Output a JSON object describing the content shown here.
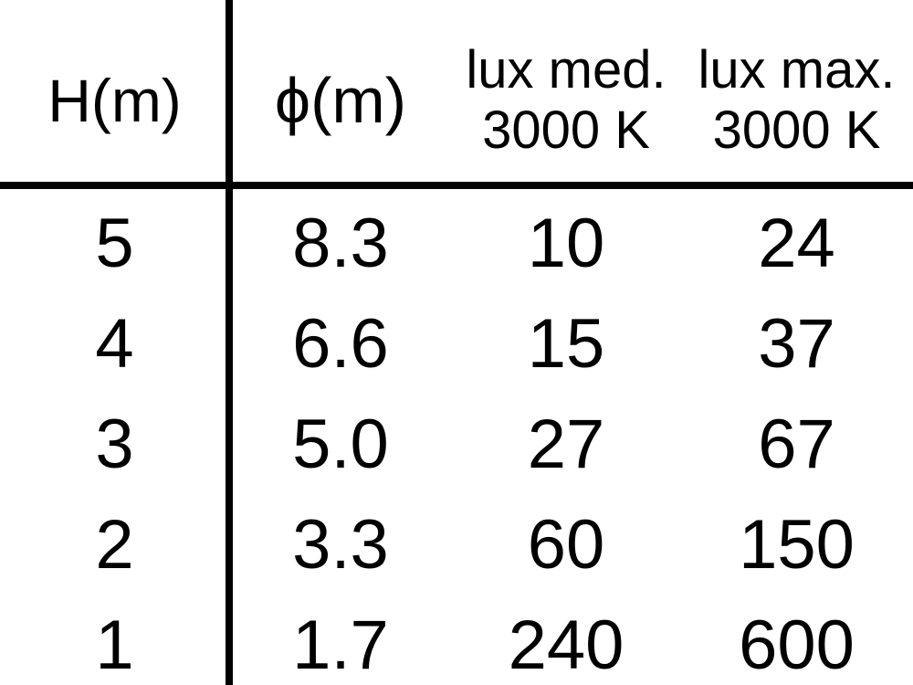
{
  "colors": {
    "background": "#ffffff",
    "text": "#000000",
    "rule": "#000000"
  },
  "table": {
    "columns": [
      {
        "label": "H(m)",
        "sub": ""
      },
      {
        "label": "ϕ(m)",
        "sub": ""
      },
      {
        "label": "lux med.",
        "sub": "3000 K"
      },
      {
        "label": "lux max.",
        "sub": "3000 K"
      }
    ],
    "rows": [
      [
        "5",
        "8.3",
        "10",
        "24"
      ],
      [
        "4",
        "6.6",
        "15",
        "37"
      ],
      [
        "3",
        "5.0",
        "27",
        "67"
      ],
      [
        "2",
        "3.3",
        "60",
        "150"
      ],
      [
        "1",
        "1.7",
        "240",
        "600"
      ]
    ]
  },
  "chart_data": {
    "type": "table",
    "title": "",
    "columns": [
      "H(m)",
      "ϕ(m)",
      "lux med. 3000 K",
      "lux max. 3000 K"
    ],
    "rows": [
      [
        5,
        8.3,
        10,
        24
      ],
      [
        4,
        6.6,
        15,
        37
      ],
      [
        3,
        5.0,
        27,
        67
      ],
      [
        2,
        3.3,
        60,
        150
      ],
      [
        1,
        1.7,
        240,
        600
      ]
    ]
  }
}
